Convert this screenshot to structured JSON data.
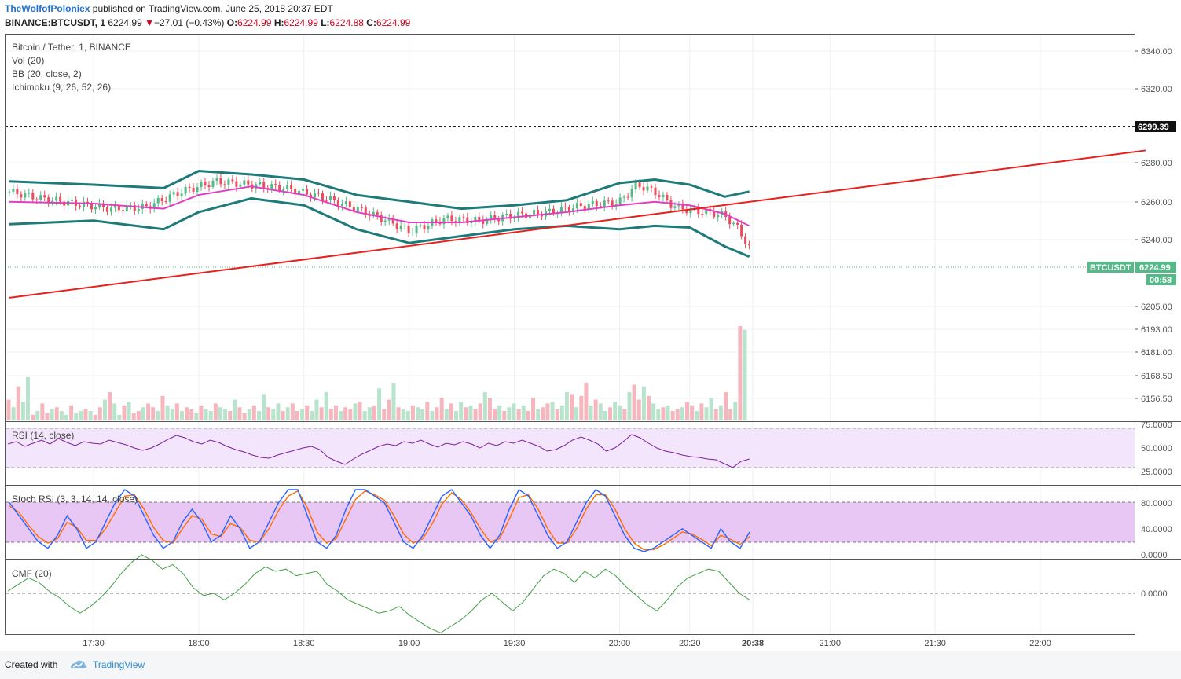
{
  "header": {
    "author": "TheWolfofPoloniex",
    "published": " published on TradingView.com, June 25, 2018 20:37 EDT",
    "symbol": "BINANCE:BTCUSDT, 1",
    "last": "6224.99",
    "change": "−27.01 (−0.43%)",
    "o_label": "O:",
    "o": "6224.99",
    "h_label": "H:",
    "h": "6224.99",
    "l_label": "L:",
    "l": "6224.88",
    "c_label": "C:",
    "c": "6224.99"
  },
  "legend": {
    "title": "Bitcoin / Tether, 1, BINANCE",
    "vol": "Vol (20)",
    "bb": "BB (20, close, 2)",
    "ichimoku": "Ichimoku (9, 26, 52, 26)",
    "rsi": "RSI (14, close)",
    "stoch": "Stoch RSI (3, 3, 14, 14, close)",
    "cmf": "CMF (20)"
  },
  "badges": {
    "hline_price": "6299.39",
    "symbol": "BTCUSDT",
    "price": "6224.99",
    "countdown": "00:58"
  },
  "colors": {
    "up": "#53b987",
    "down": "#eb4d5c",
    "bb": "#1f7a7a",
    "basis": "#e040c0",
    "trend": "#e8201e",
    "rsi": "#7b1fa2",
    "stoch_k": "#2962ff",
    "stoch_d": "#ff6d00",
    "cmf": "#43a047",
    "price_badge": "#53b987"
  },
  "footer": {
    "made": "Created with",
    "brand": "TradingView"
  },
  "chart_data": {
    "type": "line",
    "title": "Bitcoin / Tether, 1, BINANCE",
    "x_ticks": [
      "17:30",
      "18:00",
      "18:30",
      "19:00",
      "19:30",
      "20:00",
      "20:20",
      "20:38",
      "21:00",
      "21:30",
      "22:00"
    ],
    "price_ticks": [
      "6340.00",
      "6320.00",
      "6280.00",
      "6260.00",
      "6240.00",
      "6205.00"
    ],
    "volume_ticks": [
      "6193.00",
      "6181.00",
      "6168.50",
      "6156.50"
    ],
    "rsi_ticks": [
      "75.0000",
      "50.0000",
      "25.0000"
    ],
    "stoch_ticks": [
      "80.0000",
      "40.0000",
      "0.0000"
    ],
    "cmf_ticks": [
      "0.0000"
    ],
    "ylim_price": [
      6205,
      6345
    ],
    "horizontal_line": 6299.39,
    "last_price": 6224.99,
    "trendline": [
      {
        "x": "17:06",
        "y": 6196
      },
      {
        "x": "22:30",
        "y": 6282
      }
    ],
    "series": [
      {
        "name": "Close",
        "x": [
          "17:06",
          "17:15",
          "17:25",
          "17:35",
          "17:45",
          "17:55",
          "18:05",
          "18:15",
          "18:25",
          "18:35",
          "18:45",
          "18:55",
          "19:00",
          "19:10",
          "19:20",
          "19:30",
          "19:40",
          "19:50",
          "20:00",
          "20:05",
          "20:10",
          "20:15",
          "20:20",
          "20:25",
          "20:30",
          "20:34",
          "20:37"
        ],
        "values": [
          6258,
          6254,
          6251,
          6248,
          6249,
          6258,
          6264,
          6262,
          6260,
          6255,
          6248,
          6240,
          6235,
          6242,
          6241,
          6244,
          6246,
          6250,
          6252,
          6262,
          6258,
          6250,
          6247,
          6246,
          6244,
          6236,
          6224.99
        ]
      },
      {
        "name": "BB upper",
        "x": [
          "17:06",
          "17:30",
          "17:50",
          "18:00",
          "18:15",
          "18:30",
          "18:45",
          "19:00",
          "19:15",
          "19:30",
          "19:45",
          "20:00",
          "20:10",
          "20:20",
          "20:30",
          "20:37"
        ],
        "values": [
          6264,
          6262,
          6260,
          6270,
          6268,
          6265,
          6256,
          6252,
          6248,
          6250,
          6253,
          6263,
          6265,
          6262,
          6255,
          6258
        ]
      },
      {
        "name": "BB lower",
        "x": [
          "17:06",
          "17:30",
          "17:50",
          "18:00",
          "18:15",
          "18:30",
          "18:45",
          "19:00",
          "19:15",
          "19:30",
          "19:45",
          "20:00",
          "20:10",
          "20:20",
          "20:30",
          "20:37"
        ],
        "values": [
          6239,
          6241,
          6236,
          6246,
          6254,
          6250,
          6236,
          6228,
          6232,
          6236,
          6238,
          6236,
          6238,
          6237,
          6226,
          6220
        ]
      },
      {
        "name": "BB basis",
        "x": [
          "17:06",
          "17:30",
          "17:50",
          "18:00",
          "18:15",
          "18:30",
          "18:45",
          "19:00",
          "19:15",
          "19:30",
          "19:45",
          "20:00",
          "20:10",
          "20:20",
          "20:30",
          "20:37"
        ],
        "values": [
          6252,
          6251,
          6248,
          6256,
          6261,
          6256,
          6246,
          6240,
          6240,
          6243,
          6246,
          6250,
          6252,
          6250,
          6245,
          6238
        ]
      }
    ],
    "volume": [
      22,
      14,
      36,
      20,
      46,
      6,
      10,
      18,
      8,
      12,
      14,
      10,
      6,
      16,
      8,
      10,
      12,
      10,
      6,
      14,
      22,
      30,
      18,
      6,
      16,
      20,
      8,
      10,
      14,
      18,
      14,
      10,
      26,
      16,
      12,
      18,
      10,
      14,
      12,
      8,
      16,
      12,
      10,
      18,
      14,
      12,
      10,
      22,
      14,
      8,
      12,
      16,
      10,
      28,
      14,
      12,
      18,
      10,
      14,
      18,
      10,
      12,
      16,
      10,
      22,
      14,
      30,
      12,
      16,
      10,
      14,
      12,
      18,
      20,
      10,
      14,
      16,
      34,
      12,
      22,
      40,
      14,
      12,
      10,
      16,
      14,
      12,
      20,
      10,
      14,
      24,
      12,
      18,
      10,
      20,
      14,
      16,
      12,
      18,
      30,
      24,
      12,
      16,
      10,
      14,
      18,
      12,
      16,
      10,
      24,
      12,
      14,
      18,
      20,
      12,
      16,
      30,
      28,
      14,
      26,
      40,
      16,
      22,
      18,
      10,
      14,
      20,
      16,
      12,
      30,
      38,
      22,
      36,
      26,
      18,
      12,
      14,
      16,
      10,
      12,
      14,
      20,
      16,
      10,
      18,
      14,
      24,
      12,
      16,
      30,
      12,
      20,
      100,
      96
    ],
    "rsi": [
      55,
      58,
      52,
      56,
      60,
      55,
      62,
      57,
      53,
      58,
      56,
      55,
      60,
      57,
      54,
      50,
      47,
      50,
      55,
      61,
      66,
      63,
      58,
      55,
      60,
      57,
      52,
      48,
      45,
      41,
      38,
      37,
      41,
      44,
      47,
      50,
      52,
      48,
      38,
      33,
      29,
      36,
      42,
      47,
      52,
      55,
      53,
      58,
      56,
      60,
      55,
      51,
      56,
      54,
      58,
      55,
      50,
      56,
      53,
      58,
      56,
      60,
      56,
      52,
      46,
      48,
      53,
      60,
      64,
      60,
      55,
      46,
      50,
      58,
      67,
      63,
      56,
      50,
      46,
      44,
      41,
      39,
      38,
      36,
      35,
      30,
      25,
      33,
      36
    ],
    "stoch_k": [
      80,
      60,
      40,
      20,
      10,
      30,
      60,
      40,
      10,
      20,
      50,
      80,
      100,
      90,
      60,
      30,
      10,
      20,
      50,
      70,
      50,
      20,
      30,
      60,
      40,
      10,
      20,
      50,
      80,
      100,
      100,
      60,
      20,
      10,
      30,
      70,
      100,
      100,
      90,
      80,
      50,
      20,
      10,
      30,
      60,
      90,
      100,
      80,
      60,
      30,
      10,
      30,
      70,
      100,
      90,
      60,
      30,
      10,
      20,
      50,
      80,
      100,
      90,
      60,
      30,
      10,
      5,
      10,
      20,
      30,
      40,
      30,
      20,
      10,
      40,
      20,
      10,
      35
    ],
    "stoch_d": [
      75,
      65,
      45,
      28,
      18,
      25,
      50,
      42,
      22,
      22,
      40,
      65,
      90,
      92,
      70,
      42,
      22,
      18,
      40,
      60,
      55,
      32,
      28,
      48,
      42,
      22,
      20,
      40,
      68,
      90,
      98,
      72,
      35,
      18,
      25,
      55,
      85,
      98,
      92,
      84,
      60,
      32,
      18,
      25,
      48,
      78,
      95,
      85,
      65,
      40,
      20,
      25,
      55,
      88,
      92,
      70,
      40,
      18,
      18,
      40,
      70,
      92,
      92,
      70,
      40,
      18,
      8,
      8,
      15,
      25,
      35,
      32,
      24,
      14,
      30,
      24,
      16,
      28
    ],
    "cmf": [
      0.02,
      0.08,
      0.14,
      0.1,
      0.02,
      -0.04,
      -0.12,
      -0.18,
      -0.12,
      -0.04,
      0.06,
      0.18,
      0.28,
      0.35,
      0.3,
      0.22,
      0.26,
      0.18,
      0.05,
      -0.02,
      0.0,
      -0.06,
      0.0,
      0.08,
      0.18,
      0.24,
      0.2,
      0.22,
      0.16,
      0.18,
      0.2,
      0.08,
      0.02,
      -0.06,
      -0.1,
      -0.14,
      -0.18,
      -0.16,
      -0.12,
      -0.2,
      -0.26,
      -0.32,
      -0.36,
      -0.3,
      -0.24,
      -0.16,
      -0.06,
      0.0,
      -0.08,
      -0.16,
      -0.08,
      0.04,
      0.16,
      0.22,
      0.18,
      0.1,
      0.2,
      0.14,
      0.22,
      0.16,
      0.06,
      -0.02,
      -0.1,
      -0.16,
      -0.06,
      0.06,
      0.14,
      0.18,
      0.22,
      0.2,
      0.1,
      0.0,
      -0.06
    ]
  }
}
